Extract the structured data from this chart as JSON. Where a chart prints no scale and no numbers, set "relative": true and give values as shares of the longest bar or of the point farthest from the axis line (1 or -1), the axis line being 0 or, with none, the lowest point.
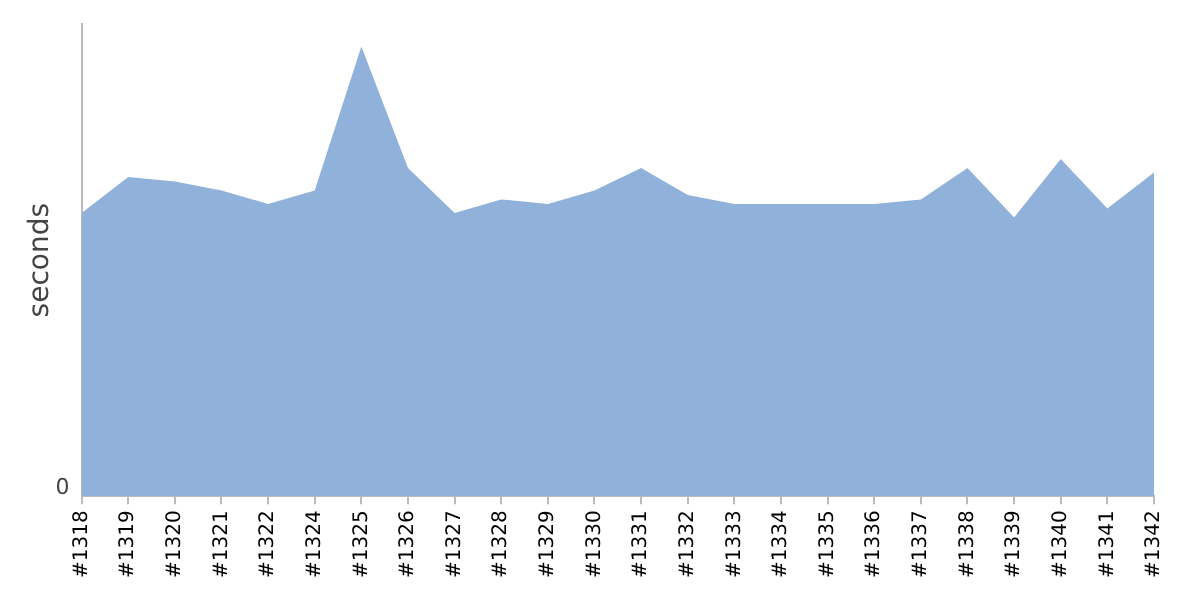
{
  "chart_data": {
    "type": "area",
    "relative": true,
    "ylabel": "seconds",
    "annotations": [
      "0"
    ],
    "categories": [
      "#1318",
      "#1319",
      "#1320",
      "#1321",
      "#1322",
      "#1324",
      "#1325",
      "#1326",
      "#1327",
      "#1328",
      "#1329",
      "#1330",
      "#1331",
      "#1332",
      "#1333",
      "#1334",
      "#1335",
      "#1336",
      "#1337",
      "#1338",
      "#1339",
      "#1340",
      "#1341",
      "#1342"
    ],
    "series": [
      {
        "color": "#8fb1da",
        "values": [
          0.63,
          0.71,
          0.7,
          0.68,
          0.65,
          0.68,
          1,
          0.73,
          0.63,
          0.66,
          0.65,
          0.68,
          0.73,
          0.67,
          0.65,
          0.65,
          0.65,
          0.65,
          0.66,
          0.73,
          0.62,
          0.75,
          0.64,
          0.72
        ]
      }
    ],
    "grid": false,
    "legend": false
  }
}
